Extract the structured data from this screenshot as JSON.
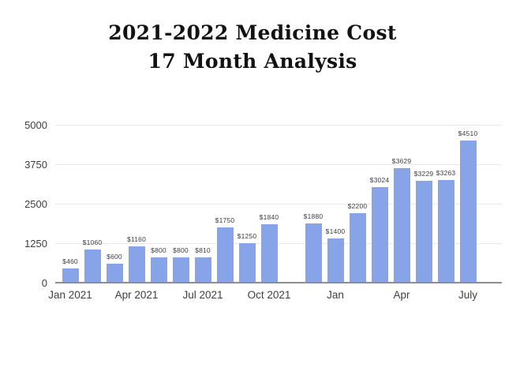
{
  "title": {
    "line1": "2021-2022 Medicine Cost",
    "line2": "17 Month Analysis"
  },
  "chart_data": {
    "type": "bar",
    "title": "2021-2022 Medicine Cost 17 Month Analysis",
    "xlabel": "",
    "ylabel": "",
    "ylim": [
      0,
      5000
    ],
    "grid": "horizontal",
    "legend_position": "none",
    "num_slots": 19,
    "y_ticks": [
      {
        "value": 0,
        "label": "0"
      },
      {
        "value": 1250,
        "label": "1250"
      },
      {
        "value": 2500,
        "label": "2500"
      },
      {
        "value": 3750,
        "label": "3750"
      },
      {
        "value": 5000,
        "label": "5000"
      }
    ],
    "x_ticks": [
      {
        "slot": 0,
        "label": "Jan 2021"
      },
      {
        "slot": 3,
        "label": "Apr 2021"
      },
      {
        "slot": 6,
        "label": "Jul 2021"
      },
      {
        "slot": 9,
        "label": "Oct 2021"
      },
      {
        "slot": 12,
        "label": "Jan"
      },
      {
        "slot": 15,
        "label": "Apr"
      },
      {
        "slot": 18,
        "label": "July"
      }
    ],
    "bars": [
      {
        "slot": 0,
        "value": 460,
        "label": "$460"
      },
      {
        "slot": 1,
        "value": 1060,
        "label": "$1060"
      },
      {
        "slot": 2,
        "value": 600,
        "label": "$600"
      },
      {
        "slot": 3,
        "value": 1160,
        "label": "$1160"
      },
      {
        "slot": 4,
        "value": 800,
        "label": "$800"
      },
      {
        "slot": 5,
        "value": 800,
        "label": "$800"
      },
      {
        "slot": 6,
        "value": 810,
        "label": "$810"
      },
      {
        "slot": 7,
        "value": 1750,
        "label": "$1750"
      },
      {
        "slot": 8,
        "value": 1250,
        "label": "$1250"
      },
      {
        "slot": 9,
        "value": 1840,
        "label": "$1840"
      },
      {
        "slot": 11,
        "value": 1880,
        "label": "$1880"
      },
      {
        "slot": 12,
        "value": 1400,
        "label": "$1400"
      },
      {
        "slot": 13,
        "value": 2200,
        "label": "$2200"
      },
      {
        "slot": 14,
        "value": 3024,
        "label": "$3024"
      },
      {
        "slot": 15,
        "value": 3629,
        "label": "$3629"
      },
      {
        "slot": 16,
        "value": 3229,
        "label": "$3229"
      },
      {
        "slot": 17,
        "value": 3263,
        "label": "$3263"
      },
      {
        "slot": 18,
        "value": 4510,
        "label": "$4510"
      }
    ],
    "colors": {
      "bar": "#87a4e8",
      "grid": "#e8e8e8",
      "axis": "#8b8f94",
      "tick_text": "#3d4043",
      "value_text": "#3a3d40",
      "title_text": "#121212"
    }
  }
}
